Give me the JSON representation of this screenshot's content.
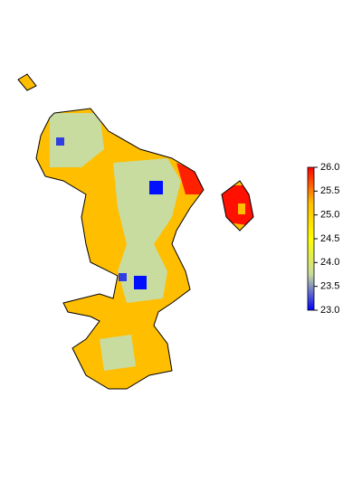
{
  "legend": {
    "range": [
      23,
      26
    ],
    "ticks": [
      {
        "value": 23,
        "label": "23.0"
      },
      {
        "value": 23.5,
        "label": "23.5"
      },
      {
        "value": 24,
        "label": "24.0"
      },
      {
        "value": 24.5,
        "label": "24.5"
      },
      {
        "value": 25,
        "label": "25.0"
      },
      {
        "value": 25.5,
        "label": "25.5"
      },
      {
        "value": 26,
        "label": "26.0"
      }
    ],
    "colors": [
      "#0000ff",
      "#c8dca0",
      "#ffff00",
      "#ffbe00",
      "#ff0000"
    ]
  }
}
